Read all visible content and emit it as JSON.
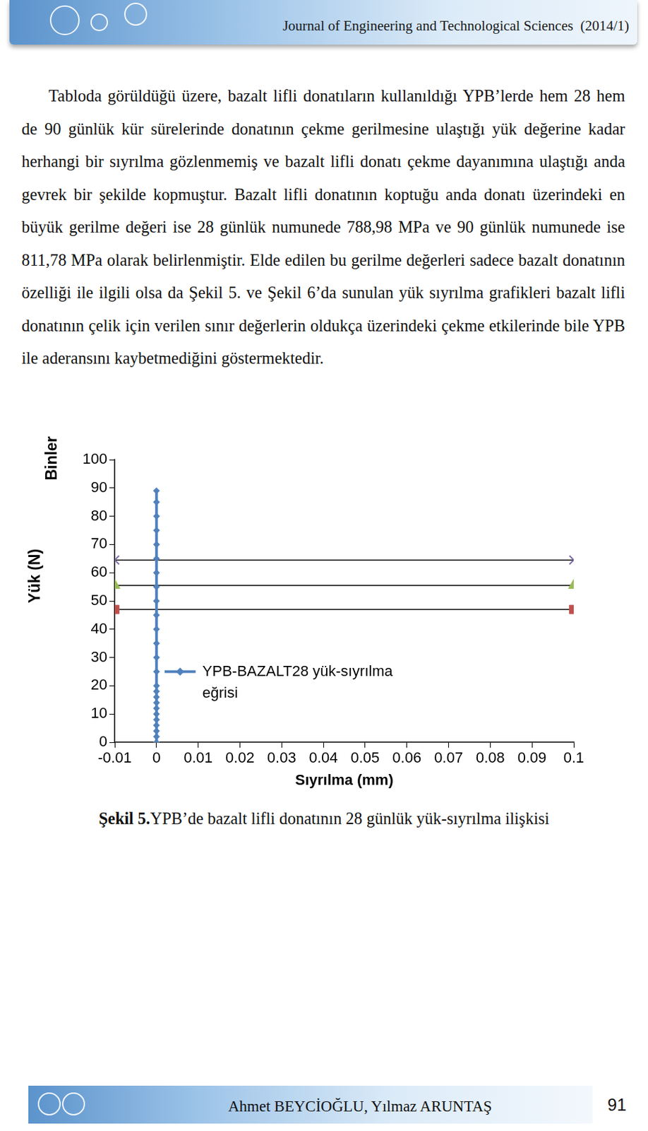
{
  "header": {
    "journal": "Journal of Engineering and Technological Sciences  (2014/1)"
  },
  "paragraph": "Tabloda görüldüğü üzere, bazalt lifli donatıların kullanıldığı YPB’lerde hem 28 hem de 90 günlük kür sürelerinde donatının çekme gerilmesine ulaştığı yük değerine kadar herhangi bir sıyrılma gözlenmemiş ve bazalt lifli donatı çekme dayanımına ulaştığı anda gevrek bir şekilde kopmuştur. Bazalt lifli donatının koptuğu anda donatı üzerindeki en büyük gerilme değeri ise 28 günlük numunede 788,98 MPa ve 90 günlük numunede ise 811,78 MPa olarak belirlenmiştir. Elde edilen bu gerilme değerleri sadece bazalt donatının özelliği ile ilgili olsa da Şekil 5. ve Şekil 6’da sunulan yük sıyrılma grafikleri bazalt lifli donatının çelik için verilen sınır değerlerin oldukça üzerindeki çekme etkilerinde bile YPB ile aderansını kaybetmediğini göstermektedir.",
  "chart_data": {
    "type": "line",
    "xlabel": "Sıyrılma (mm)",
    "ylabel": "Yük (N)",
    "annotations": [
      "Binler"
    ],
    "xlim": [
      -0.01,
      0.1
    ],
    "xticks": [
      -0.01,
      0,
      0.01,
      0.02,
      0.03,
      0.04,
      0.05,
      0.06,
      0.07,
      0.08,
      0.09,
      0.1
    ],
    "ylim": [
      0,
      100
    ],
    "yticks": [
      0,
      10,
      20,
      30,
      40,
      50,
      60,
      70,
      80,
      90,
      100
    ],
    "grid": false,
    "series": [
      {
        "name": "YPB-BAZALT28 yük-sıyrılma eğrisi",
        "color": "#4f81bd",
        "marker": "diamond",
        "x": [
          0,
          0,
          0,
          0,
          0,
          0,
          0,
          0,
          0,
          0,
          0,
          0,
          0,
          0,
          0,
          0,
          0,
          0,
          0,
          0,
          0,
          0,
          0,
          0,
          0
        ],
        "values": [
          0,
          2,
          4,
          6,
          8,
          10,
          12,
          14,
          16,
          18,
          20,
          25,
          30,
          35,
          40,
          45,
          50,
          55,
          60,
          65,
          70,
          75,
          80,
          85,
          89
        ]
      },
      {
        "color": "#7f6ca6",
        "marker": "x",
        "x": [
          -0.01,
          0.1
        ],
        "values": [
          64.5,
          64.5
        ]
      },
      {
        "color": "#9bbb59",
        "marker": "triangle",
        "x": [
          -0.01,
          0.1
        ],
        "values": [
          55.5,
          55.5
        ]
      },
      {
        "color": "#c0504d",
        "marker": "square",
        "x": [
          -0.01,
          0.1
        ],
        "values": [
          47,
          47
        ]
      }
    ]
  },
  "caption": {
    "label": "Şekil 5.",
    "text": "YPB’de bazalt lifli donatının 28 günlük yük-sıyrılma ilişkisi"
  },
  "footer": {
    "authors": "Ahmet BEYCİOĞLU, Yılmaz ARUNTAŞ",
    "page": "91"
  }
}
